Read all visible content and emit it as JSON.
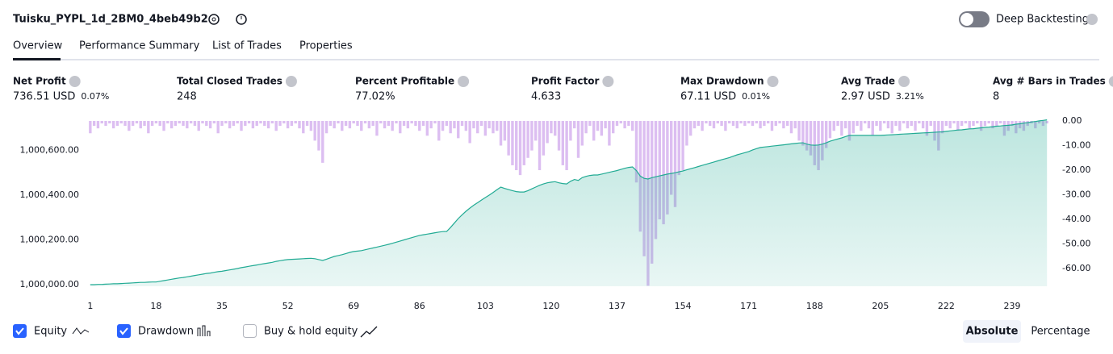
{
  "header": {
    "title": "Tuisku_PYPL_1d_2BM0_4beb49b2",
    "deep_backtesting": "Deep Backtesting"
  },
  "tabs": [
    "Overview",
    "Performance Summary",
    "List of Trades",
    "Properties"
  ],
  "metrics": [
    {
      "label": "Net Profit",
      "value": "736.51 USD",
      "percent": "0.07%",
      "color": "#089981"
    },
    {
      "label": "Total Closed Trades",
      "value": "248",
      "color": "#131722"
    },
    {
      "label": "Percent Profitable",
      "value": "77.02%",
      "color": "#089981"
    },
    {
      "label": "Profit Factor",
      "value": "4.633",
      "color": "#089981"
    },
    {
      "label": "Max Drawdown",
      "value": "67.11 USD",
      "percent": "0.01%",
      "color": "#f23645"
    },
    {
      "label": "Avg Trade",
      "value": "2.97 USD",
      "percent": "3.21%",
      "color": "#089981"
    },
    {
      "label": "Avg # Bars in Trades",
      "value": "8",
      "color": "#131722"
    }
  ],
  "controls": {
    "buy_hold": "Buy & hold equity",
    "absolute": "Absolute",
    "percentage": "Percentage"
  },
  "chart_data": {
    "type": "line",
    "x": [
      1,
      2,
      3,
      4,
      5,
      6,
      7,
      8,
      9,
      10,
      11,
      12,
      13,
      14,
      15,
      16,
      17,
      18,
      19,
      20,
      21,
      22,
      23,
      24,
      25,
      26,
      27,
      28,
      29,
      30,
      31,
      32,
      33,
      34,
      35,
      36,
      37,
      38,
      39,
      40,
      41,
      42,
      43,
      44,
      45,
      46,
      47,
      48,
      49,
      50,
      51,
      52,
      53,
      54,
      55,
      56,
      57,
      58,
      59,
      60,
      61,
      62,
      63,
      64,
      65,
      66,
      67,
      68,
      69,
      70,
      71,
      72,
      73,
      74,
      75,
      76,
      77,
      78,
      79,
      80,
      81,
      82,
      83,
      84,
      85,
      86,
      87,
      88,
      89,
      90,
      91,
      92,
      93,
      94,
      95,
      96,
      97,
      98,
      99,
      100,
      101,
      102,
      103,
      104,
      105,
      106,
      107,
      108,
      109,
      110,
      111,
      112,
      113,
      114,
      115,
      116,
      117,
      118,
      119,
      120,
      121,
      122,
      123,
      124,
      125,
      126,
      127,
      128,
      129,
      130,
      131,
      132,
      133,
      134,
      135,
      136,
      137,
      138,
      139,
      140,
      141,
      142,
      143,
      144,
      145,
      146,
      147,
      148,
      149,
      150,
      151,
      152,
      153,
      154,
      155,
      156,
      157,
      158,
      159,
      160,
      161,
      162,
      163,
      164,
      165,
      166,
      167,
      168,
      169,
      170,
      171,
      172,
      173,
      174,
      175,
      176,
      177,
      178,
      179,
      180,
      181,
      182,
      183,
      184,
      185,
      186,
      187,
      188,
      189,
      190,
      191,
      192,
      193,
      194,
      195,
      196,
      197,
      198,
      199,
      200,
      201,
      202,
      203,
      204,
      205,
      206,
      207,
      208,
      209,
      210,
      211,
      212,
      213,
      214,
      215,
      216,
      217,
      218,
      219,
      220,
      221,
      222,
      223,
      224,
      225,
      226,
      227,
      228,
      229,
      230,
      231,
      232,
      233,
      234,
      235,
      236,
      237,
      238,
      239,
      240,
      241,
      242,
      243,
      244,
      245,
      246,
      247,
      248
    ],
    "xlim": [
      0.2,
      249
    ],
    "xticks": [
      1,
      18,
      35,
      52,
      69,
      86,
      103,
      120,
      137,
      154,
      171,
      188,
      205,
      222,
      239
    ],
    "ylim": [
      999992.8,
      1000738.7
    ],
    "yticks": [
      {
        "value": 1000000,
        "label": "1,000,000.00"
      },
      {
        "value": 1000200,
        "label": "1,000,200.00"
      },
      {
        "value": 1000400,
        "label": "1,000,400.00"
      },
      {
        "value": 1000600,
        "label": "1,000,600.00"
      }
    ],
    "y2lim": [
      -67.2,
      0.66
    ],
    "y2ticks": [
      {
        "value": 0,
        "label": "0.00"
      },
      {
        "value": -10,
        "label": "-10.00"
      },
      {
        "value": -20,
        "label": "-20.00"
      },
      {
        "value": -30,
        "label": "-30.00"
      },
      {
        "value": -40,
        "label": "-40.00"
      },
      {
        "value": -50,
        "label": "-50.00"
      },
      {
        "value": -60,
        "label": "-60.00"
      }
    ],
    "series": [
      {
        "name": "Equity",
        "color": "#22ab94",
        "values": [
          1000000,
          1000000,
          1000001,
          1000001,
          1000002,
          1000003,
          1000004,
          1000004,
          1000005,
          1000006,
          1000007,
          1000008,
          1000009,
          1000010,
          1000010,
          1000011,
          1000012,
          1000012,
          1000015,
          1000018,
          1000021,
          1000024,
          1000027,
          1000030,
          1000032,
          1000035,
          1000038,
          1000041,
          1000044,
          1000047,
          1000050,
          1000052,
          1000055,
          1000058,
          1000060,
          1000063,
          1000066,
          1000069,
          1000072,
          1000076,
          1000079,
          1000082,
          1000085,
          1000088,
          1000091,
          1000094,
          1000097,
          1000100,
          1000104,
          1000107,
          1000110,
          1000112,
          1000113,
          1000114,
          1000115,
          1000116,
          1000117,
          1000118,
          1000116,
          1000112,
          1000108,
          1000114,
          1000120,
          1000126,
          1000130,
          1000134,
          1000139,
          1000144,
          1000148,
          1000150,
          1000152,
          1000156,
          1000160,
          1000164,
          1000168,
          1000172,
          1000176,
          1000180,
          1000185,
          1000190,
          1000195,
          1000200,
          1000205,
          1000210,
          1000215,
          1000220,
          1000223,
          1000226,
          1000229,
          1000232,
          1000235,
          1000237,
          1000238,
          1000255,
          1000275,
          1000295,
          1000312,
          1000328,
          1000342,
          1000355,
          1000366,
          1000378,
          1000389,
          1000400,
          1000412,
          1000424,
          1000436,
          1000430,
          1000425,
          1000420,
          1000416,
          1000414,
          1000414,
          1000420,
          1000428,
          1000436,
          1000444,
          1000450,
          1000455,
          1000458,
          1000460,
          1000455,
          1000452,
          1000450,
          1000462,
          1000470,
          1000466,
          1000478,
          1000484,
          1000488,
          1000490,
          1000490,
          1000494,
          1000498,
          1000502,
          1000506,
          1000510,
          1000515,
          1000520,
          1000524,
          1000526,
          1000510,
          1000485,
          1000475,
          1000472,
          1000478,
          1000482,
          1000486,
          1000490,
          1000494,
          1000497,
          1000500,
          1000504,
          1000508,
          1000513,
          1000518,
          1000523,
          1000528,
          1000533,
          1000538,
          1000543,
          1000548,
          1000553,
          1000558,
          1000563,
          1000568,
          1000574,
          1000580,
          1000585,
          1000590,
          1000595,
          1000602,
          1000608,
          1000613,
          1000615,
          1000617,
          1000619,
          1000621,
          1000623,
          1000625,
          1000627,
          1000629,
          1000631,
          1000633,
          1000634,
          1000628,
          1000624,
          1000623,
          1000624,
          1000628,
          1000634,
          1000641,
          1000646,
          1000651,
          1000656,
          1000662,
          1000667,
          1000667,
          1000667,
          1000667,
          1000667,
          1000667,
          1000667,
          1000667,
          1000667,
          1000668,
          1000669,
          1000670,
          1000671,
          1000672,
          1000673,
          1000674,
          1000675,
          1000676,
          1000677,
          1000678,
          1000679,
          1000680,
          1000681,
          1000682,
          1000683,
          1000685,
          1000687,
          1000689,
          1000691,
          1000692,
          1000694,
          1000696,
          1000697,
          1000699,
          1000701,
          1000703,
          1000704,
          1000706,
          1000708,
          1000709,
          1000711,
          1000712,
          1000714,
          1000717,
          1000719,
          1000722,
          1000724,
          1000727,
          1000729,
          1000732,
          1000734,
          1000736.51
        ]
      },
      {
        "name": "Drawdown",
        "color": "#d6b3ee",
        "axis": "y2",
        "values": [
          -5,
          -2,
          -3,
          -1,
          -2,
          -1,
          -3,
          -2,
          -1,
          -2,
          -4,
          -2,
          -1,
          -3,
          -2,
          -5,
          -2,
          -1,
          -2,
          -4,
          -1,
          -3,
          -2,
          -1,
          -2,
          -3,
          -1,
          -2,
          -4,
          -1,
          -2,
          -3,
          -1,
          -5,
          -2,
          -1,
          -3,
          -2,
          -1,
          -4,
          -2,
          -1,
          -3,
          -2,
          -1,
          -2,
          -3,
          -1,
          -4,
          -2,
          -1,
          -3,
          -2,
          -1,
          -3,
          -5,
          -2,
          -4,
          -8,
          -12,
          -17,
          -5,
          -2,
          -3,
          -1,
          -4,
          -2,
          -3,
          -1,
          -2,
          -4,
          -1,
          -3,
          -2,
          -6,
          -1,
          -3,
          -2,
          -4,
          -1,
          -5,
          -2,
          -3,
          -1,
          -2,
          -4,
          -2,
          -6,
          -3,
          -1,
          -8,
          -4,
          -2,
          -5,
          -3,
          -7,
          -2,
          -4,
          -9,
          -3,
          -5,
          -2,
          -6,
          -3,
          -5,
          -4,
          -10,
          -8,
          -14,
          -18,
          -20,
          -22,
          -18,
          -15,
          -12,
          -8,
          -20,
          -14,
          -9,
          -5,
          -6,
          -12,
          -18,
          -20,
          -8,
          -3,
          -15,
          -10,
          -5,
          -2,
          -8,
          -4,
          -6,
          -3,
          -10,
          -5,
          -2,
          -1,
          -3,
          -2,
          -4,
          -25,
          -45,
          -55,
          -67,
          -58,
          -48,
          -40,
          -42,
          -38,
          -30,
          -35,
          -22,
          -20,
          -10,
          -6,
          -3,
          -2,
          -4,
          -1,
          -2,
          -3,
          -1,
          -2,
          -4,
          -1,
          -2,
          -3,
          -1,
          -2,
          -1,
          -2,
          -1,
          -3,
          -2,
          -1,
          -4,
          -2,
          -1,
          -3,
          -2,
          -5,
          -3,
          -8,
          -10,
          -12,
          -14,
          -18,
          -20,
          -16,
          -11,
          -7,
          -4,
          -2,
          -6,
          -3,
          -8,
          -5,
          -2,
          -4,
          -1,
          -3,
          -6,
          -2,
          -4,
          -1,
          -3,
          -5,
          -2,
          -4,
          -1,
          -3,
          -2,
          -4,
          -1,
          -3,
          -6,
          -2,
          -8,
          -12,
          -5,
          -2,
          -3,
          -1,
          -4,
          -2,
          -1,
          -3,
          -2,
          -1,
          -4,
          -2,
          -1,
          -3,
          -2,
          -1,
          -6,
          -4,
          -2,
          -5,
          -3,
          -4,
          -2,
          -1,
          -3,
          -1,
          -2,
          -1
        ]
      }
    ]
  }
}
